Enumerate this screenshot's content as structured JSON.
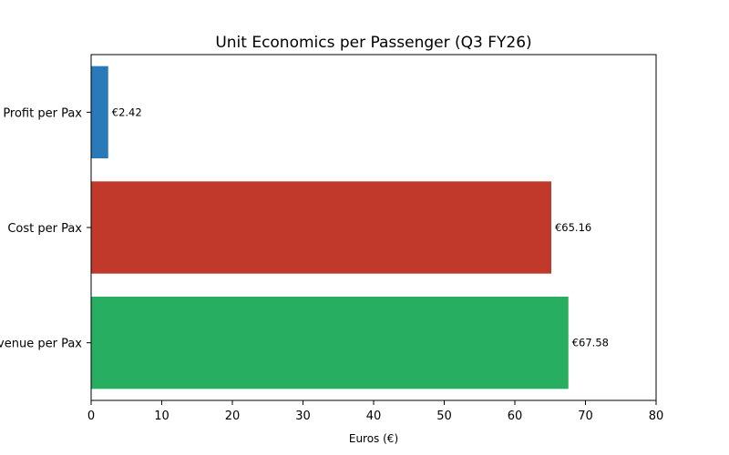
{
  "chart_data": {
    "type": "bar",
    "orientation": "horizontal",
    "title": "Unit Economics per Passenger (Q3 FY26)",
    "xlabel": "Euros (€)",
    "ylabel": "",
    "xlim": [
      0,
      80
    ],
    "xticks": [
      "0",
      "10",
      "20",
      "30",
      "40",
      "50",
      "60",
      "70",
      "80"
    ],
    "categories": [
      "Profit per Pax",
      "Cost per Pax",
      "Revenue per Pax"
    ],
    "values": [
      2.42,
      65.16,
      67.58
    ],
    "data_labels": [
      "€2.42",
      "€65.16",
      "€67.58"
    ],
    "colors": [
      "#2a7ab9",
      "#c0392b",
      "#27ae60"
    ],
    "grid": false,
    "legend": "none"
  }
}
